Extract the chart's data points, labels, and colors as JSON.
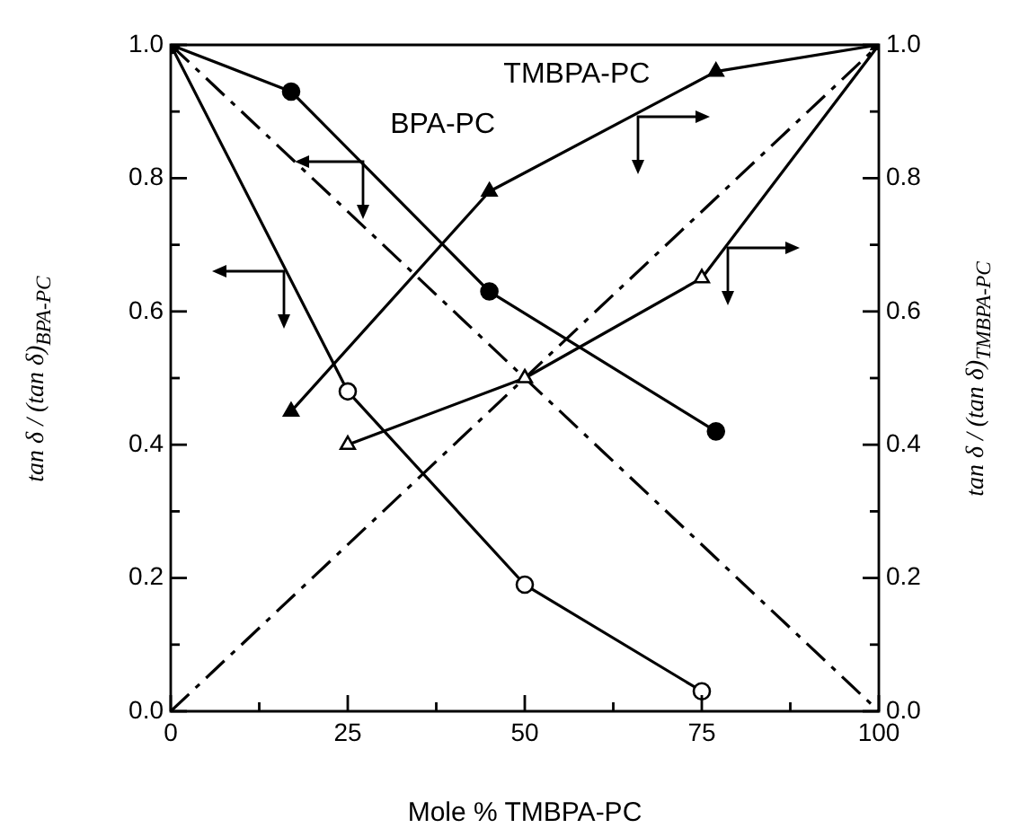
{
  "chart_data": {
    "type": "line",
    "xlabel": "Mole % TMBPA-PC",
    "ylabel": "tan δ / (tan δ)$_{BPA-PC}$",
    "y2label": "tan δ / (tan δ)$_{TMBPA-PC}$",
    "xlim": [
      0,
      100
    ],
    "xticks": [
      {
        "value": 0,
        "label": "0"
      },
      {
        "value": 12.5,
        "label": null
      },
      25,
      {
        "value": 37.5,
        "label": null
      },
      50,
      {
        "value": 62.5,
        "label": null
      },
      75,
      {
        "value": 87.5,
        "label": null
      },
      100
    ],
    "ylim": [
      0,
      1
    ],
    "yticks": [
      {
        "value": 0,
        "label": "0.0"
      },
      {
        "value": 0.1,
        "label": null
      },
      0.2,
      {
        "value": 0.3,
        "label": null
      },
      0.4,
      {
        "value": 0.5,
        "label": null
      },
      0.6,
      {
        "value": 0.7,
        "label": null
      },
      0.8,
      {
        "value": 0.9,
        "label": null
      },
      {
        "value": 1,
        "label": "1.0"
      }
    ],
    "y2lim": [
      0,
      1
    ],
    "y2ticks": [
      {
        "value": 0,
        "label": "0.0"
      },
      {
        "value": 0.1,
        "label": null
      },
      0.2,
      {
        "value": 0.3,
        "label": null
      },
      0.4,
      {
        "value": 0.5,
        "label": null
      },
      0.6,
      {
        "value": 0.7,
        "label": null
      },
      0.8,
      {
        "value": 0.9,
        "label": null
      },
      {
        "value": 1,
        "label": "1.0"
      }
    ],
    "grid": false,
    "legend": false,
    "line_style": "solid",
    "series": [
      {
        "name": "BPA-PC",
        "color": "#000000",
        "marker": "circle",
        "x": [
          0,
          17,
          45,
          77
        ],
        "values": [
          1.0,
          0.93,
          0.63,
          0.42
        ]
      },
      {
        "color": "#000000",
        "marker": "circle",
        "x": [
          0,
          25,
          50,
          75
        ],
        "values": [
          1.0,
          0.48,
          0.19,
          0.03
        ]
      },
      {
        "name": "TMBPA-PC",
        "color": "#000000",
        "marker": "triangle",
        "x": [
          17,
          45,
          77,
          100
        ],
        "values": [
          0.45,
          0.78,
          0.96,
          1.0
        ]
      },
      {
        "color": "#000000",
        "marker": "triangle",
        "x": [
          25,
          50,
          75,
          100
        ],
        "values": [
          0.4,
          0.5,
          0.65,
          1.0
        ]
      },
      {
        "color": "#000000",
        "marker": "none",
        "line_style": "dashed",
        "x": [
          0,
          100
        ],
        "values": [
          1.0,
          0.0
        ]
      },
      {
        "color": "#000000",
        "marker": "none",
        "line_style": "dashed",
        "x": [
          0,
          100
        ],
        "values": [
          0.0,
          1.0
        ]
      }
    ]
  }
}
